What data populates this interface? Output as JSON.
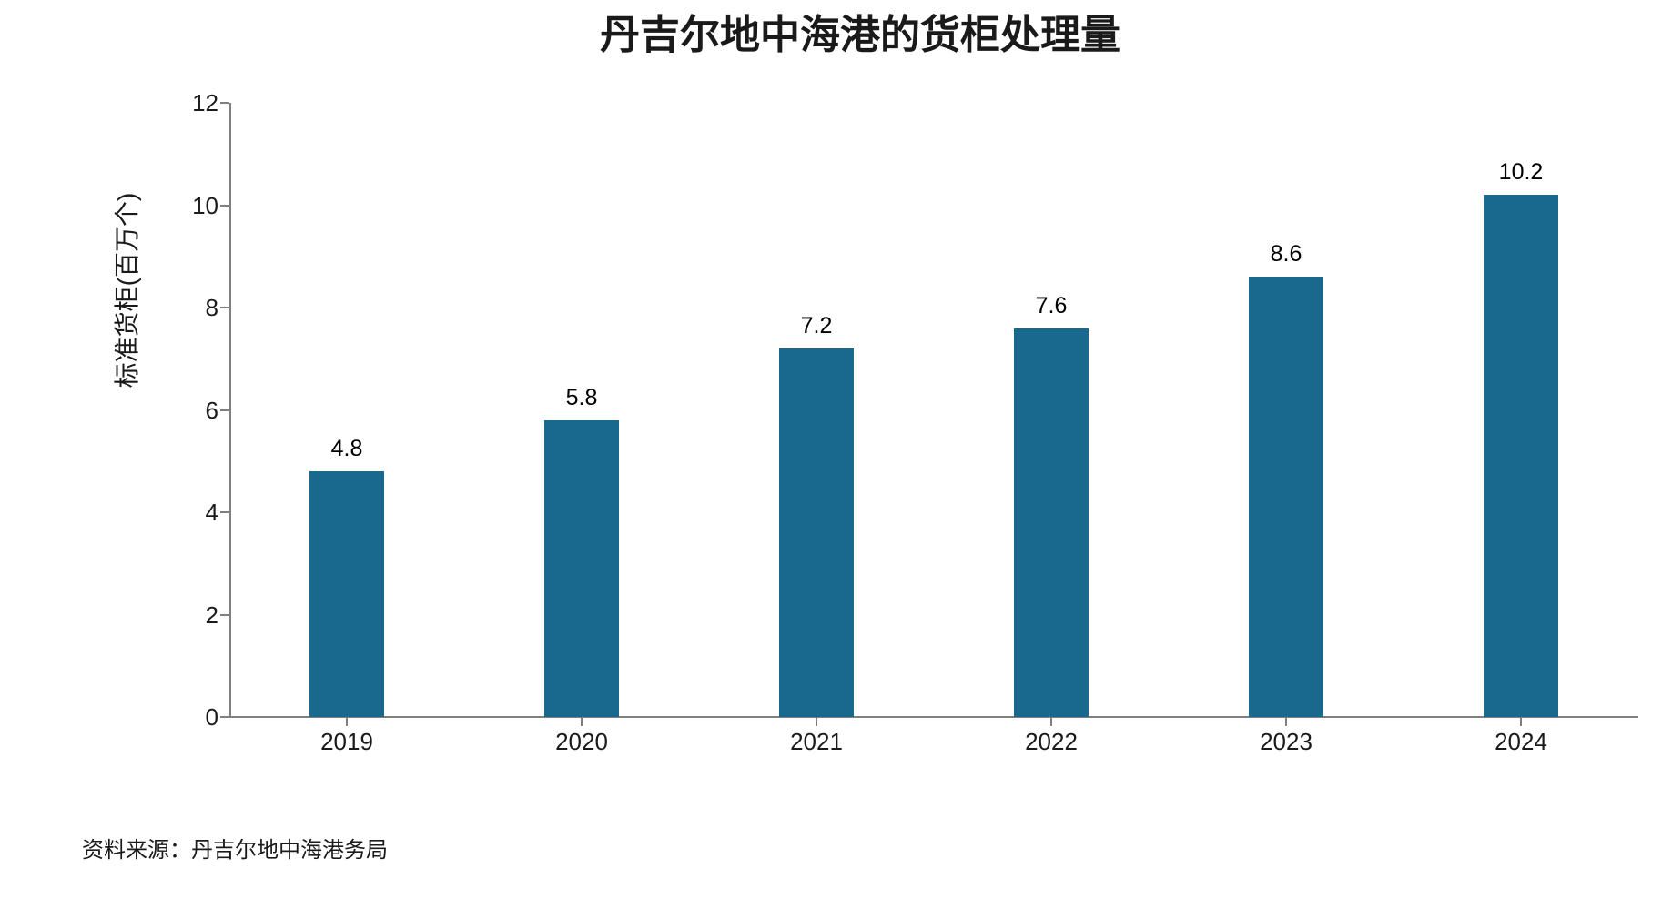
{
  "chart_data": {
    "type": "bar",
    "title": "丹吉尔地中海港的货柜处理量",
    "ylabel": "标准货柜(百万个)",
    "xlabel": "",
    "categories": [
      "2019",
      "2020",
      "2021",
      "2022",
      "2023",
      "2024"
    ],
    "values": [
      4.8,
      5.8,
      7.2,
      7.6,
      8.6,
      10.2
    ],
    "value_labels": [
      "4.8",
      "5.8",
      "7.2",
      "7.6",
      "8.6",
      "10.2"
    ],
    "ylim": [
      0,
      12
    ],
    "yticks": [
      0,
      2,
      4,
      6,
      8,
      10,
      12
    ],
    "grid": false,
    "legend": null
  },
  "source": "资料来源：丹吉尔地中海港务局",
  "colors": {
    "bar": "#19698F",
    "axis_line": "#808080",
    "tick_mark": "#7f7f7f",
    "text": "#1a1a1a"
  }
}
